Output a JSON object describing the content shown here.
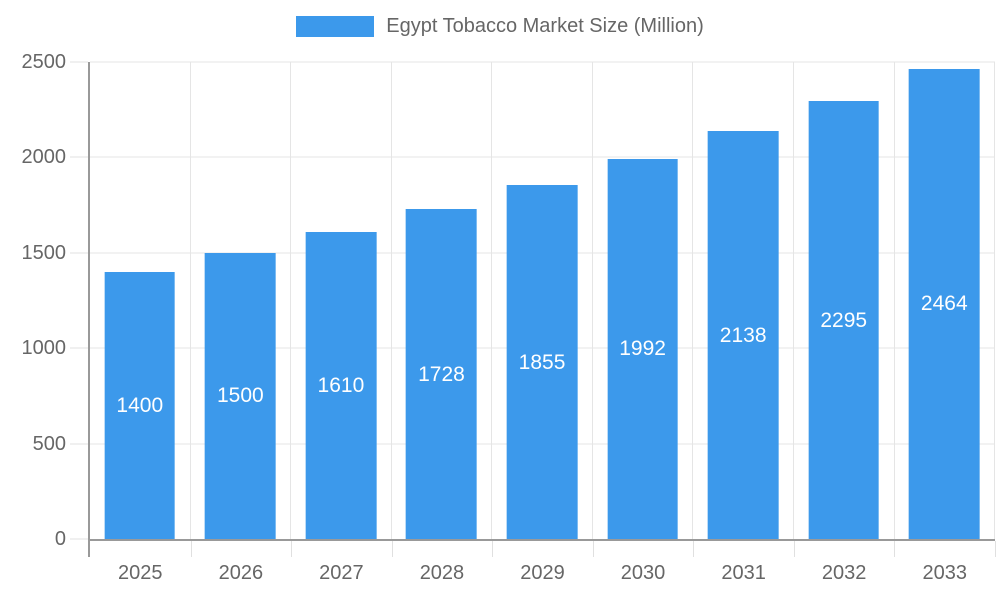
{
  "chart_data": {
    "type": "bar",
    "title": "Egypt Tobacco Market Size (Million)",
    "series_name": "Egypt Tobacco Market Size (Million)",
    "categories": [
      "2025",
      "2026",
      "2027",
      "2028",
      "2029",
      "2030",
      "2031",
      "2032",
      "2033"
    ],
    "values": [
      1400,
      1500,
      1610,
      1728,
      1855,
      1992,
      2138,
      2295,
      2464
    ],
    "xlabel": "",
    "ylabel": "",
    "ylim": [
      0,
      2500
    ],
    "yticks": [
      0,
      500,
      1000,
      1500,
      2000,
      2500
    ],
    "grid": true,
    "legend_position": "top",
    "value_labels_position": "inside-center",
    "bar_color": "#3C99EB",
    "value_label_color": "#ffffff",
    "grid_color": "#e5e5e5",
    "axis_color": "#999999",
    "text_color": "#666666",
    "background_color": "#ffffff"
  }
}
